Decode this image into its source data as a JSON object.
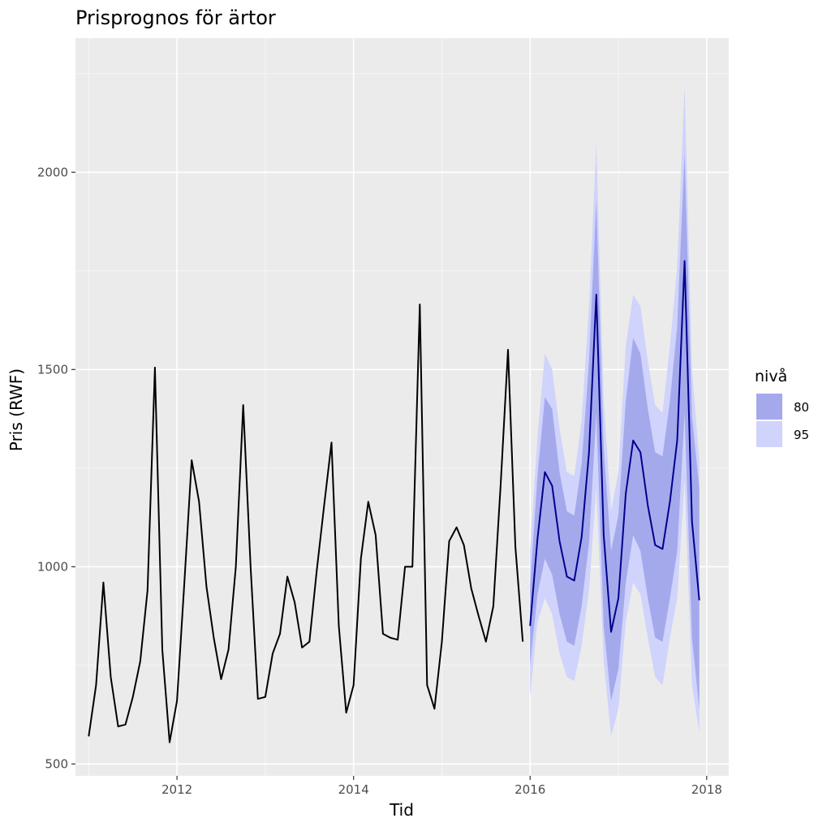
{
  "chart_data": {
    "type": "line",
    "title": "Prisprognos för ärtor",
    "xlabel": "Tid",
    "ylabel": "Pris (RWF)",
    "xlim": [
      2010.85,
      2018.25
    ],
    "ylim": [
      470,
      2340
    ],
    "x_ticks": [
      {
        "value": 2012,
        "label": "2012"
      },
      {
        "value": 2014,
        "label": "2014"
      },
      {
        "value": 2016,
        "label": "2016"
      },
      {
        "value": 2018,
        "label": "2018"
      }
    ],
    "y_ticks": [
      {
        "value": 500,
        "label": "500"
      },
      {
        "value": 1000,
        "label": "1000"
      },
      {
        "value": 1500,
        "label": "1500"
      },
      {
        "value": 2000,
        "label": "2000"
      }
    ],
    "grid": true,
    "legend": {
      "title": "nivå",
      "position": "right",
      "items": [
        {
          "label": "80",
          "color": "#a4a9ec"
        },
        {
          "label": "95",
          "color": "#d0d3fb"
        }
      ]
    },
    "colors": {
      "panel": "#ebebeb",
      "grid_major": "#ffffff",
      "history_line": "#000000",
      "forecast_line": "#00008b",
      "band80": "#a4a9ec",
      "band95": "#d0d3fb"
    },
    "history": {
      "start": 2011.0,
      "step_months": 1,
      "values": [
        570,
        700,
        960,
        720,
        595,
        600,
        670,
        760,
        940,
        1505,
        790,
        555,
        660,
        960,
        1270,
        1165,
        950,
        820,
        715,
        790,
        1000,
        1410,
        1000,
        665,
        670,
        780,
        830,
        975,
        910,
        795,
        810,
        990,
        1155,
        1315,
        850,
        630,
        700,
        1020,
        1165,
        1080,
        830,
        820,
        815,
        1000,
        1000,
        1665,
        700,
        640,
        810,
        1065,
        1100,
        1055,
        945,
        875,
        810,
        900,
        1210,
        1550,
        1050,
        810
      ]
    },
    "forecast": {
      "start": 2016.0,
      "step_months": 1,
      "mean": [
        850,
        1070,
        1240,
        1205,
        1065,
        975,
        965,
        1075,
        1290,
        1690,
        1080,
        835,
        920,
        1185,
        1320,
        1290,
        1155,
        1055,
        1045,
        1165,
        1320,
        1775,
        1115,
        915
      ],
      "lo80": [
        750,
        930,
        1020,
        980,
        880,
        810,
        800,
        900,
        1060,
        1390,
        850,
        660,
        740,
        960,
        1080,
        1040,
        920,
        820,
        810,
        920,
        1040,
        1390,
        820,
        640
      ],
      "hi80": [
        950,
        1230,
        1430,
        1400,
        1240,
        1140,
        1130,
        1260,
        1520,
        1930,
        1300,
        1040,
        1130,
        1420,
        1580,
        1540,
        1400,
        1290,
        1280,
        1420,
        1610,
        2050,
        1380,
        1200
      ],
      "lo95": [
        670,
        860,
        920,
        880,
        780,
        720,
        710,
        800,
        940,
        1200,
        760,
        570,
        640,
        860,
        960,
        930,
        820,
        720,
        700,
        820,
        920,
        1220,
        700,
        580
      ],
      "hi95": [
        1040,
        1330,
        1540,
        1500,
        1350,
        1240,
        1230,
        1370,
        1660,
        2070,
        1420,
        1140,
        1240,
        1560,
        1690,
        1660,
        1520,
        1410,
        1390,
        1560,
        1760,
        2220,
        1500,
        1270
      ]
    }
  }
}
